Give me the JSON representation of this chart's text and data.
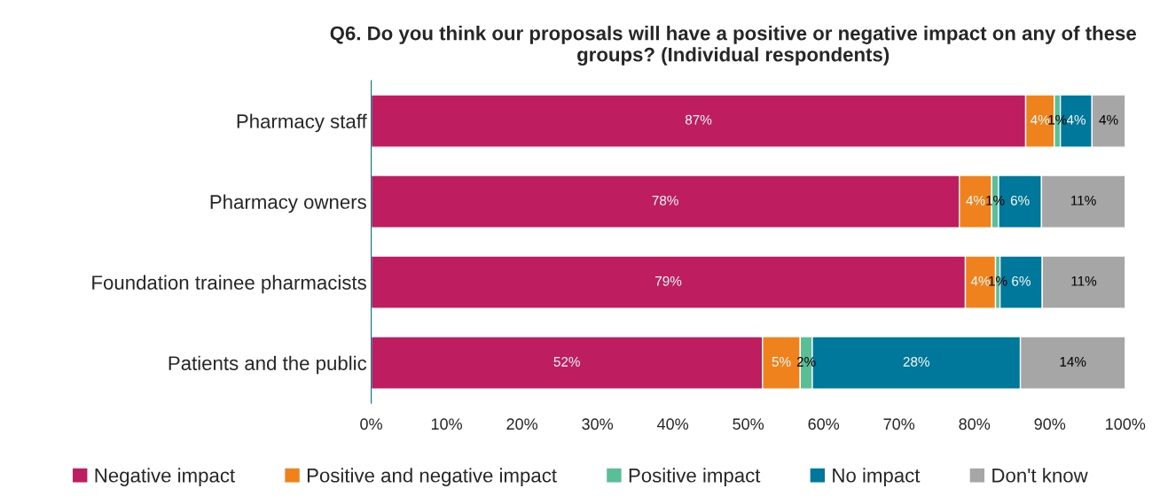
{
  "chart_data": {
    "type": "bar",
    "orientation": "horizontal",
    "stacked": true,
    "title": "Q6. Do you think our proposals will have a positive or negative impact on any of these groups? (Individual respondents)",
    "categories": [
      "Pharmacy staff",
      "Pharmacy owners",
      "Foundation trainee pharmacists",
      "Patients and the public"
    ],
    "series": [
      {
        "name": "Negative impact",
        "color": "#be1e5f",
        "values": [
          86.8,
          78.0,
          78.8,
          51.9
        ],
        "value_labels": [
          "87%",
          "78%",
          "79%",
          "52%"
        ]
      },
      {
        "name": "Positive and negative impact",
        "color": "#f0821e",
        "values": [
          3.8,
          4.3,
          4.0,
          5.0
        ],
        "value_labels": [
          "4%",
          "4%",
          "4%",
          "5%"
        ]
      },
      {
        "name": "Positive impact",
        "color": "#5abe96",
        "values": [
          0.8,
          0.9,
          0.6,
          1.6
        ],
        "value_labels": [
          "1%",
          "1%",
          "1%",
          "2%"
        ]
      },
      {
        "name": "No impact",
        "color": "#00789b",
        "values": [
          4.2,
          5.7,
          5.6,
          27.6
        ],
        "value_labels": [
          "4%",
          "6%",
          "6%",
          "28%"
        ]
      },
      {
        "name": "Don't know",
        "color": "#a6a6a6",
        "values": [
          4.4,
          11.1,
          11.0,
          13.9
        ],
        "value_labels": [
          "4%",
          "11%",
          "11%",
          "14%"
        ]
      }
    ],
    "xlim": [
      0,
      100
    ],
    "xticks": [
      {
        "value": 0,
        "label": "0%"
      },
      {
        "value": 10,
        "label": "10%"
      },
      {
        "value": 20,
        "label": "20%"
      },
      {
        "value": 30,
        "label": "30%"
      },
      {
        "value": 40,
        "label": "40%"
      },
      {
        "value": 50,
        "label": "50%"
      },
      {
        "value": 60,
        "label": "60%"
      },
      {
        "value": 70,
        "label": "70%"
      },
      {
        "value": 80,
        "label": "80%"
      },
      {
        "value": 90,
        "label": "90%"
      },
      {
        "value": 100,
        "label": "100%"
      }
    ],
    "grid": false,
    "legend": "bottom"
  }
}
